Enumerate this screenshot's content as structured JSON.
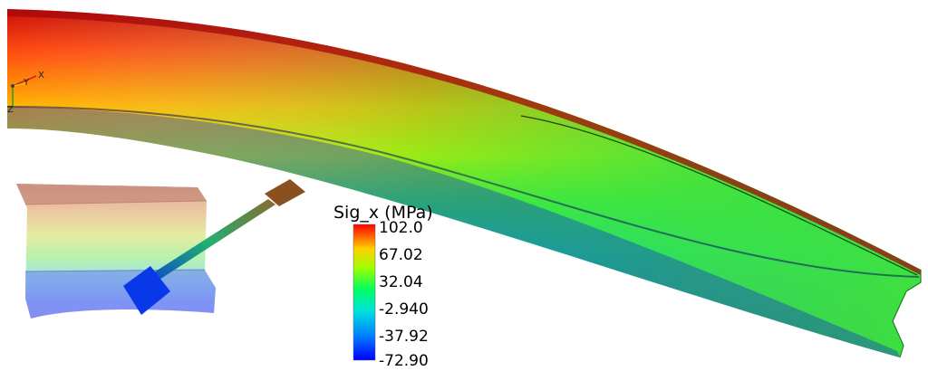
{
  "legend": {
    "title": "Sig_x (MPa)",
    "ticks": [
      "102.0",
      "67.02",
      "32.04",
      "-2.940",
      "-37.92",
      "-72.90"
    ],
    "range": [
      -72.9,
      102.0
    ],
    "colormap": [
      "#0000ff",
      "#00bfff",
      "#00ff80",
      "#80ff00",
      "#ffff00",
      "#ff8000",
      "#ff0000"
    ]
  },
  "axes_triad": {
    "x_label": "X",
    "y_label": "Y",
    "z_label": "Z"
  },
  "colors": {
    "background": "#ffffff",
    "max_stress": "#d82010",
    "min_stress": "#0a1edc"
  }
}
